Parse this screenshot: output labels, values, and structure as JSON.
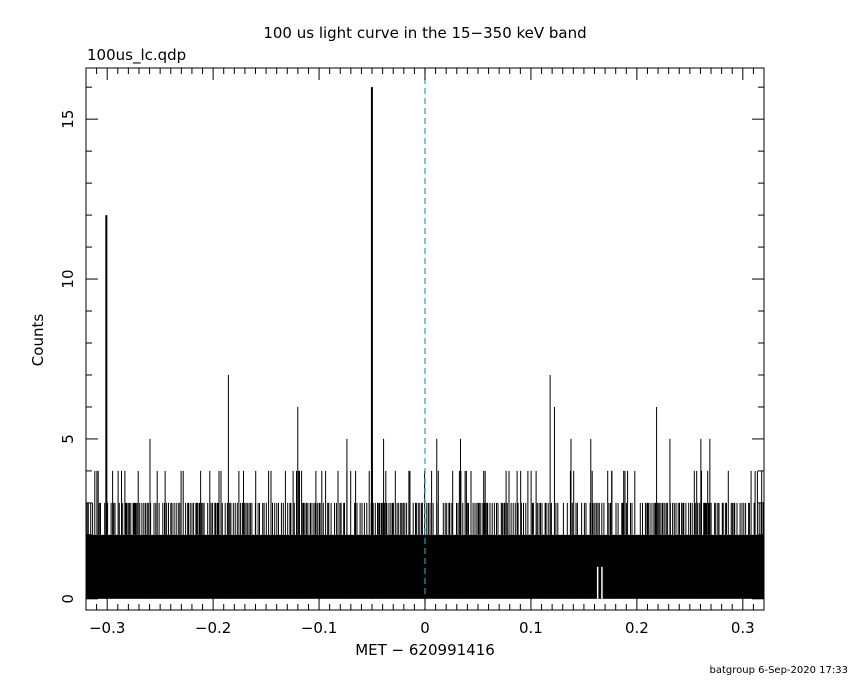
{
  "chart_data": {
    "type": "bar",
    "title": "100 us light curve in the 15−350 keV band",
    "subtitle": "100us_lc.qdp",
    "xlabel": "MET − 620991416",
    "ylabel": "Counts",
    "footer": "batgroup  6-Sep-2020 17:33",
    "xlim": [
      -0.32,
      0.32
    ],
    "ylim": [
      -0.35,
      16.6
    ],
    "xticks": [
      -0.3,
      -0.2,
      -0.1,
      0,
      0.1,
      0.2,
      0.3
    ],
    "xtick_labels": [
      "−0.3",
      "−0.2",
      "−0.1",
      "0",
      "0.1",
      "0.2",
      "0.3"
    ],
    "yticks": [
      0,
      5,
      10,
      15
    ],
    "ytick_labels": [
      "0",
      "5",
      "10",
      "15"
    ],
    "bin_width": 0.0001,
    "baseline_count": 2,
    "trigger_time": 0,
    "trigger_line_color": "#1fa0b4",
    "peaks": [
      {
        "x": -0.3008,
        "y": 12
      },
      {
        "x": -0.2596,
        "y": 5
      },
      {
        "x": -0.2453,
        "y": 4
      },
      {
        "x": -0.1856,
        "y": 7
      },
      {
        "x": -0.2118,
        "y": 4
      },
      {
        "x": -0.1598,
        "y": 4
      },
      {
        "x": -0.1201,
        "y": 6
      },
      {
        "x": -0.0737,
        "y": 5
      },
      {
        "x": -0.0501,
        "y": 16
      },
      {
        "x": -0.0391,
        "y": 5
      },
      {
        "x": -0.0142,
        "y": 4
      },
      {
        "x": 0.0111,
        "y": 5
      },
      {
        "x": 0.0335,
        "y": 5
      },
      {
        "x": 0.0568,
        "y": 4
      },
      {
        "x": 0.0903,
        "y": 4
      },
      {
        "x": 0.1181,
        "y": 7
      },
      {
        "x": 0.1222,
        "y": 6
      },
      {
        "x": 0.1378,
        "y": 5
      },
      {
        "x": 0.1565,
        "y": 5
      },
      {
        "x": 0.1762,
        "y": 4
      },
      {
        "x": 0.2186,
        "y": 6
      },
      {
        "x": 0.2312,
        "y": 5
      },
      {
        "x": 0.2604,
        "y": 5
      },
      {
        "x": 0.2689,
        "y": 5
      },
      {
        "x": 0.3078,
        "y": 4
      },
      {
        "x": 0.3178,
        "y": 4
      }
    ],
    "gaps": [
      0.163,
      0.167
    ],
    "grid": false,
    "legend": "none"
  }
}
